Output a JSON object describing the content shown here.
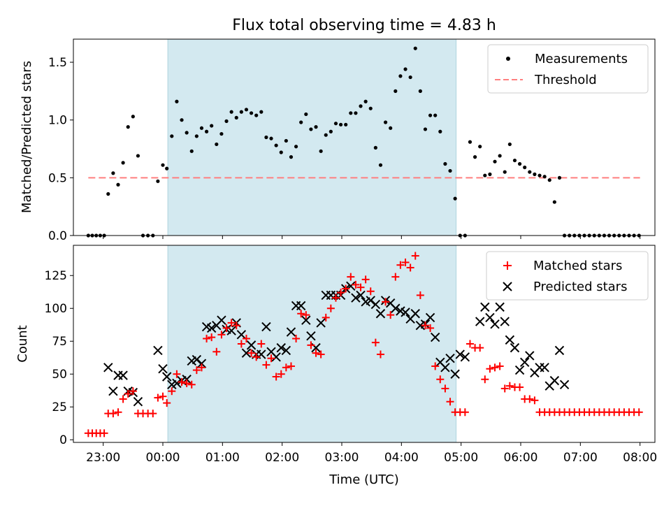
{
  "chart_data": [
    {
      "type": "scatter",
      "title": "Flux total observing time = 4.83 h",
      "ylabel": "Matched/Predicted stars",
      "xlabel": "",
      "ylim": [
        0,
        1.7
      ],
      "xlim": [
        "22:30",
        "08:15"
      ],
      "yticks": [
        0.0,
        0.5,
        1.0,
        1.5
      ],
      "ytick_labels": [
        "0.0",
        "0.5",
        "1.0",
        "1.5"
      ],
      "shaded_interval": [
        "00:05",
        "04:55"
      ],
      "shade_color": "#d3e9f0",
      "legend_position": "top-right",
      "legend": [
        {
          "label": "Measurements",
          "marker": "dot",
          "color": "#000000"
        },
        {
          "label": "Threshold",
          "marker": "dashed-line",
          "color": "#ff7f7f"
        }
      ],
      "threshold": {
        "value": 0.5,
        "from": "22:45",
        "to": "08:00"
      },
      "series": [
        {
          "name": "Measurements",
          "color": "#000000",
          "x": [
            "22:45",
            "22:49",
            "22:53",
            "22:57",
            "23:01",
            "23:05",
            "23:10",
            "23:15",
            "23:20",
            "23:25",
            "23:30",
            "23:35",
            "23:40",
            "23:45",
            "23:50",
            "23:55",
            "00:00",
            "00:04",
            "00:09",
            "00:14",
            "00:19",
            "00:24",
            "00:29",
            "00:34",
            "00:39",
            "00:44",
            "00:49",
            "00:54",
            "00:59",
            "01:04",
            "01:09",
            "01:14",
            "01:19",
            "01:24",
            "01:29",
            "01:34",
            "01:39",
            "01:44",
            "01:49",
            "01:54",
            "01:59",
            "02:04",
            "02:09",
            "02:14",
            "02:19",
            "02:24",
            "02:29",
            "02:34",
            "02:39",
            "02:44",
            "02:49",
            "02:54",
            "02:59",
            "03:04",
            "03:09",
            "03:14",
            "03:19",
            "03:24",
            "03:29",
            "03:34",
            "03:39",
            "03:44",
            "03:49",
            "03:54",
            "03:59",
            "04:04",
            "04:09",
            "04:14",
            "04:19",
            "04:24",
            "04:29",
            "04:34",
            "04:39",
            "04:44",
            "04:49",
            "04:54",
            "04:59",
            "05:04",
            "05:09",
            "05:14",
            "05:19",
            "05:24",
            "05:29",
            "05:34",
            "05:39",
            "05:44",
            "05:49",
            "05:54",
            "05:59",
            "06:04",
            "06:09",
            "06:14",
            "06:19",
            "06:24",
            "06:29",
            "06:34",
            "06:39",
            "06:44",
            "06:49",
            "06:54",
            "06:59",
            "07:04",
            "07:09",
            "07:14",
            "07:19",
            "07:24",
            "07:29",
            "07:34",
            "07:39",
            "07:44",
            "07:49",
            "07:54",
            "07:59"
          ],
          "values": [
            0,
            0,
            0,
            0,
            0,
            0.36,
            0.54,
            0.44,
            0.63,
            0.94,
            1.03,
            0.69,
            0,
            0,
            0,
            0.47,
            0.61,
            0.58,
            0.86,
            1.16,
            1.0,
            0.89,
            0.73,
            0.86,
            0.93,
            0.9,
            0.95,
            0.79,
            0.88,
            0.99,
            1.07,
            1.02,
            1.07,
            1.09,
            1.06,
            1.04,
            1.07,
            0.85,
            0.84,
            0.78,
            0.72,
            0.82,
            0.68,
            0.77,
            0.98,
            1.05,
            0.92,
            0.94,
            0.73,
            0.87,
            0.9,
            0.97,
            0.96,
            0.96,
            1.06,
            1.06,
            1.12,
            1.16,
            1.1,
            0.76,
            0.61,
            0.98,
            0.93,
            1.25,
            1.38,
            1.44,
            1.37,
            1.62,
            1.25,
            0.92,
            1.04,
            1.04,
            0.9,
            0.62,
            0.56,
            0.32,
            0,
            0,
            0.81,
            0.68,
            0.77,
            0.52,
            0.53,
            0.64,
            0.69,
            0.55,
            0.79,
            0.65,
            0.62,
            0.59,
            0.55,
            0.53,
            0.52,
            0.51,
            0.48,
            0.29,
            0.5,
            0,
            0,
            0,
            0,
            0,
            0,
            0,
            0,
            0,
            0,
            0,
            0,
            0,
            0,
            0,
            0
          ]
        }
      ]
    },
    {
      "type": "scatter",
      "title": "",
      "ylabel": "Count",
      "xlabel": "Time (UTC)",
      "ylim": [
        -2,
        148
      ],
      "xlim": [
        "22:30",
        "08:15"
      ],
      "yticks": [
        0,
        25,
        50,
        75,
        100,
        125
      ],
      "ytick_labels": [
        "0",
        "25",
        "50",
        "75",
        "100",
        "125"
      ],
      "xticks": [
        "23:00",
        "00:00",
        "01:00",
        "02:00",
        "03:00",
        "04:00",
        "05:00",
        "06:00",
        "07:00",
        "08:00"
      ],
      "xtick_labels": [
        "23:00",
        "00:00",
        "01:00",
        "02:00",
        "03:00",
        "04:00",
        "05:00",
        "06:00",
        "07:00",
        "08:00"
      ],
      "shaded_interval": [
        "00:05",
        "04:55"
      ],
      "shade_color": "#d3e9f0",
      "legend_position": "top-right",
      "legend": [
        {
          "label": "Matched stars",
          "marker": "plus",
          "color": "#ff0000"
        },
        {
          "label": "Predicted stars",
          "marker": "x",
          "color": "#000000"
        }
      ],
      "series": [
        {
          "name": "Matched stars",
          "marker": "plus",
          "color": "#ff0000",
          "x": [
            "22:45",
            "22:49",
            "22:53",
            "22:57",
            "23:01",
            "23:05",
            "23:10",
            "23:15",
            "23:20",
            "23:25",
            "23:30",
            "23:35",
            "23:40",
            "23:45",
            "23:50",
            "23:55",
            "00:00",
            "00:04",
            "00:09",
            "00:14",
            "00:19",
            "00:24",
            "00:29",
            "00:34",
            "00:39",
            "00:44",
            "00:49",
            "00:54",
            "00:59",
            "01:04",
            "01:09",
            "01:14",
            "01:19",
            "01:24",
            "01:29",
            "01:34",
            "01:39",
            "01:44",
            "01:49",
            "01:54",
            "01:59",
            "02:04",
            "02:09",
            "02:14",
            "02:19",
            "02:24",
            "02:29",
            "02:34",
            "02:39",
            "02:44",
            "02:49",
            "02:54",
            "02:59",
            "03:04",
            "03:09",
            "03:14",
            "03:19",
            "03:24",
            "03:29",
            "03:34",
            "03:39",
            "03:44",
            "03:49",
            "03:54",
            "03:59",
            "04:04",
            "04:09",
            "04:14",
            "04:19",
            "04:24",
            "04:29",
            "04:34",
            "04:39",
            "04:44",
            "04:49",
            "04:54",
            "04:59",
            "05:04",
            "05:09",
            "05:14",
            "05:19",
            "05:24",
            "05:29",
            "05:34",
            "05:39",
            "05:44",
            "05:49",
            "05:54",
            "05:59",
            "06:04",
            "06:09",
            "06:14",
            "06:19",
            "06:24",
            "06:29",
            "06:34",
            "06:39",
            "06:44",
            "06:49",
            "06:54",
            "06:59",
            "07:04",
            "07:09",
            "07:14",
            "07:19",
            "07:24",
            "07:29",
            "07:34",
            "07:39",
            "07:44",
            "07:49",
            "07:54",
            "07:59"
          ],
          "values": [
            5,
            5,
            5,
            5,
            5,
            20,
            20,
            21,
            31,
            35,
            37,
            20,
            20,
            20,
            20,
            32,
            33,
            28,
            37,
            50,
            44,
            43,
            42,
            53,
            55,
            77,
            78,
            67,
            80,
            85,
            89,
            87,
            73,
            77,
            66,
            63,
            73,
            57,
            62,
            48,
            50,
            55,
            56,
            77,
            96,
            95,
            72,
            66,
            65,
            93,
            100,
            108,
            112,
            115,
            124,
            118,
            116,
            122,
            113,
            74,
            65,
            105,
            95,
            124,
            133,
            135,
            131,
            140,
            110,
            87,
            85,
            56,
            46,
            39,
            29,
            21,
            21,
            21,
            73,
            70,
            70,
            46,
            54,
            55,
            56,
            39,
            41,
            40,
            40,
            31,
            31,
            30,
            21,
            21,
            21,
            21,
            21,
            21,
            21,
            21,
            21,
            21,
            21,
            21,
            21,
            21,
            21,
            21,
            21,
            21,
            21,
            21,
            21
          ]
        },
        {
          "name": "Predicted stars",
          "marker": "x",
          "color": "#000000",
          "x": [
            "23:05",
            "23:10",
            "23:15",
            "23:20",
            "23:25",
            "23:30",
            "23:35",
            "23:55",
            "00:00",
            "00:04",
            "00:09",
            "00:14",
            "00:19",
            "00:24",
            "00:29",
            "00:34",
            "00:39",
            "00:44",
            "00:49",
            "00:54",
            "00:59",
            "01:04",
            "01:09",
            "01:14",
            "01:19",
            "01:24",
            "01:29",
            "01:34",
            "01:39",
            "01:44",
            "01:49",
            "01:54",
            "01:59",
            "02:04",
            "02:09",
            "02:14",
            "02:19",
            "02:24",
            "02:29",
            "02:34",
            "02:39",
            "02:44",
            "02:49",
            "02:54",
            "02:59",
            "03:04",
            "03:09",
            "03:14",
            "03:19",
            "03:24",
            "03:29",
            "03:34",
            "03:39",
            "03:44",
            "03:49",
            "03:54",
            "03:59",
            "04:04",
            "04:09",
            "04:14",
            "04:19",
            "04:24",
            "04:29",
            "04:34",
            "04:39",
            "04:44",
            "04:49",
            "04:54",
            "04:59",
            "05:04",
            "05:19",
            "05:24",
            "05:29",
            "05:34",
            "05:39",
            "05:44",
            "05:49",
            "05:54",
            "05:59",
            "06:04",
            "06:09",
            "06:14",
            "06:19",
            "06:24",
            "06:29",
            "06:34",
            "06:39",
            "06:44"
          ],
          "values": [
            55,
            37,
            49,
            49,
            37,
            36,
            29,
            68,
            54,
            48,
            42,
            43,
            45,
            46,
            60,
            61,
            58,
            86,
            85,
            87,
            91,
            84,
            83,
            89,
            80,
            66,
            72,
            65,
            65,
            86,
            67,
            63,
            70,
            68,
            82,
            102,
            102,
            91,
            79,
            70,
            89,
            110,
            110,
            110,
            110,
            115,
            117,
            108,
            110,
            105,
            106,
            103,
            96,
            106,
            104,
            100,
            98,
            97,
            92,
            96,
            87,
            88,
            93,
            78,
            59,
            55,
            62,
            50,
            65,
            63,
            90,
            101,
            93,
            88,
            101,
            90,
            76,
            70,
            53,
            59,
            64,
            51,
            55,
            55,
            41,
            45,
            68,
            42
          ]
        }
      ]
    }
  ]
}
